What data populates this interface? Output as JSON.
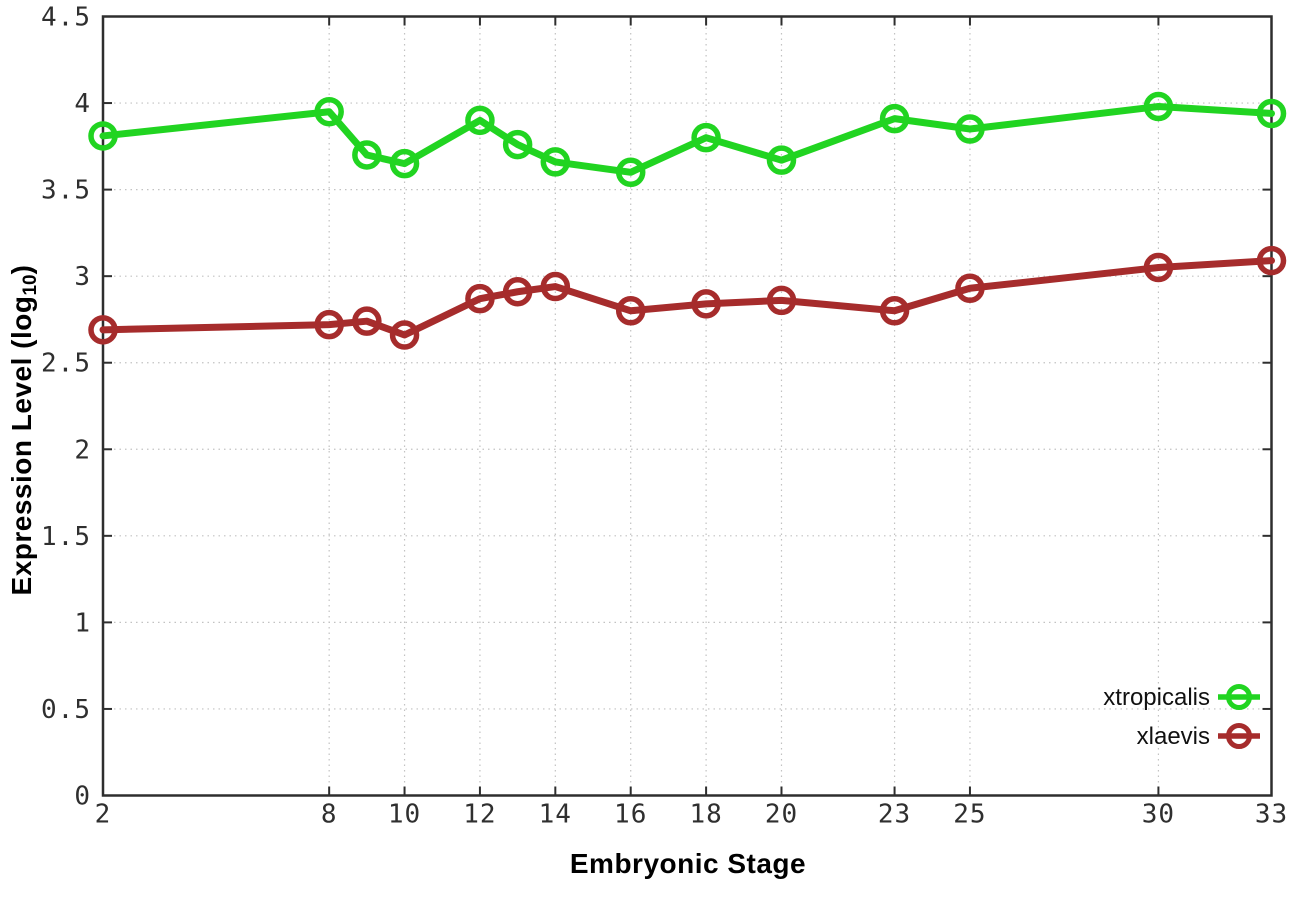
{
  "chart_data": {
    "type": "line",
    "title": "",
    "xlabel": "Embryonic Stage",
    "ylabel_pre": "Expression Level (log",
    "ylabel_sub": "10",
    "ylabel_post": ")",
    "x": [
      2,
      8,
      9,
      10,
      12,
      13,
      14,
      16,
      18,
      20,
      23,
      25,
      30,
      33
    ],
    "series": [
      {
        "name": "xtropicalis",
        "color": "#21d421",
        "values": [
          3.81,
          3.95,
          3.7,
          3.65,
          3.9,
          3.76,
          3.66,
          3.6,
          3.8,
          3.67,
          3.91,
          3.85,
          3.98,
          3.94
        ]
      },
      {
        "name": "xlaevis",
        "color": "#a62c2c",
        "values": [
          2.69,
          2.72,
          2.74,
          2.66,
          2.87,
          2.91,
          2.94,
          2.8,
          2.84,
          2.86,
          2.8,
          2.93,
          3.05,
          3.09
        ]
      }
    ],
    "x_ticks": [
      2,
      8,
      10,
      12,
      14,
      16,
      18,
      20,
      23,
      25,
      30,
      33
    ],
    "y_ticks": [
      0,
      0.5,
      1,
      1.5,
      2,
      2.5,
      3,
      3.5,
      4,
      4.5
    ],
    "xlim": [
      2,
      33
    ],
    "ylim": [
      0,
      4.5
    ],
    "grid": true,
    "legend_position": "bottom-right",
    "marker": "open-circle"
  },
  "colors": {
    "background": "#ffffff",
    "axis": "#2e2e2e",
    "grid": "#c2c2c2",
    "tick_label": "#2f2f2f",
    "legend_text": "#111111"
  }
}
